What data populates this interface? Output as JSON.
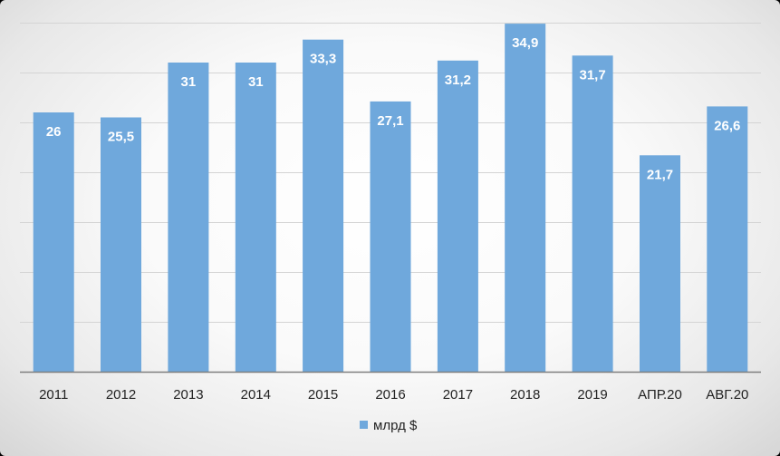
{
  "chart_data": {
    "type": "bar",
    "categories": [
      "2011",
      "2012",
      "2013",
      "2014",
      "2015",
      "2016",
      "2017",
      "2018",
      "2019",
      "АПР.20",
      "АВГ.20"
    ],
    "series": [
      {
        "name": "млрд $",
        "values": [
          26,
          25.5,
          31,
          31,
          33.3,
          27.1,
          31.2,
          34.9,
          31.7,
          21.7,
          26.6
        ]
      }
    ],
    "data_labels": [
      "26",
      "25,5",
      "31",
      "31",
      "33,3",
      "27,1",
      "31,2",
      "34,9",
      "31,7",
      "21,7",
      "26,6"
    ],
    "title": "",
    "xlabel": "",
    "ylabel": "",
    "ylim": [
      0,
      35
    ],
    "grid": true,
    "legend_position": "bottom",
    "colors": {
      "bar": "#6FA8DC",
      "gridline": "#d4d4d4",
      "axis": "#7f7f7f"
    }
  }
}
